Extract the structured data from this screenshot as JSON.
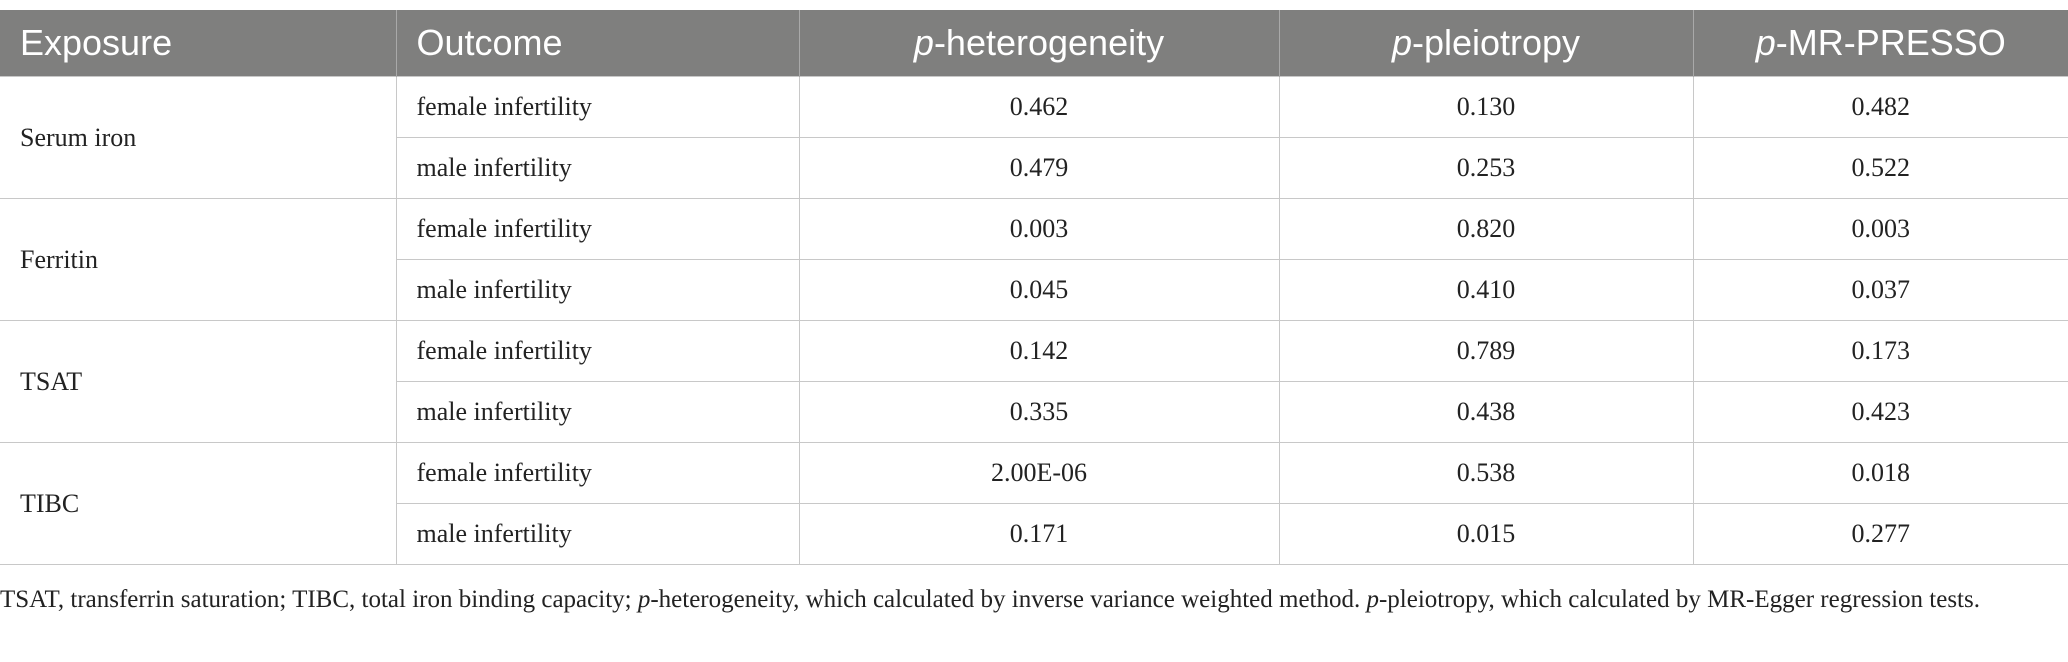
{
  "header": {
    "exposure": "Exposure",
    "outcome": "Outcome",
    "p_prefix": "p",
    "heterogeneity_suffix": "-heterogeneity",
    "pleiotropy_suffix": "-pleiotropy",
    "mrpresso_suffix": "-MR-PRESSO"
  },
  "groups": [
    {
      "exposure": "Serum iron",
      "rows": [
        {
          "outcome": "female infertility",
          "het": "0.462",
          "plei": "0.130",
          "presso": "0.482"
        },
        {
          "outcome": "male infertility",
          "het": "0.479",
          "plei": "0.253",
          "presso": "0.522"
        }
      ]
    },
    {
      "exposure": "Ferritin",
      "rows": [
        {
          "outcome": "female infertility",
          "het": "0.003",
          "plei": "0.820",
          "presso": "0.003"
        },
        {
          "outcome": "male infertility",
          "het": "0.045",
          "plei": "0.410",
          "presso": "0.037"
        }
      ]
    },
    {
      "exposure": "TSAT",
      "rows": [
        {
          "outcome": "female infertility",
          "het": "0.142",
          "plei": "0.789",
          "presso": "0.173"
        },
        {
          "outcome": "male infertility",
          "het": "0.335",
          "plei": "0.438",
          "presso": "0.423"
        }
      ]
    },
    {
      "exposure": "TIBC",
      "rows": [
        {
          "outcome": "female infertility",
          "het": "2.00E-06",
          "plei": "0.538",
          "presso": "0.018"
        },
        {
          "outcome": "male infertility",
          "het": "0.171",
          "plei": "0.015",
          "presso": "0.277"
        }
      ]
    }
  ],
  "footnote": {
    "part1": "TSAT, transferrin saturation; TIBC, total iron binding capacity; ",
    "p1": "p",
    "part2": "-heterogeneity, which calculated by inverse variance weighted method. ",
    "p2": "p",
    "part3": "-pleiotropy, which calculated by MR-Egger regression tests."
  }
}
